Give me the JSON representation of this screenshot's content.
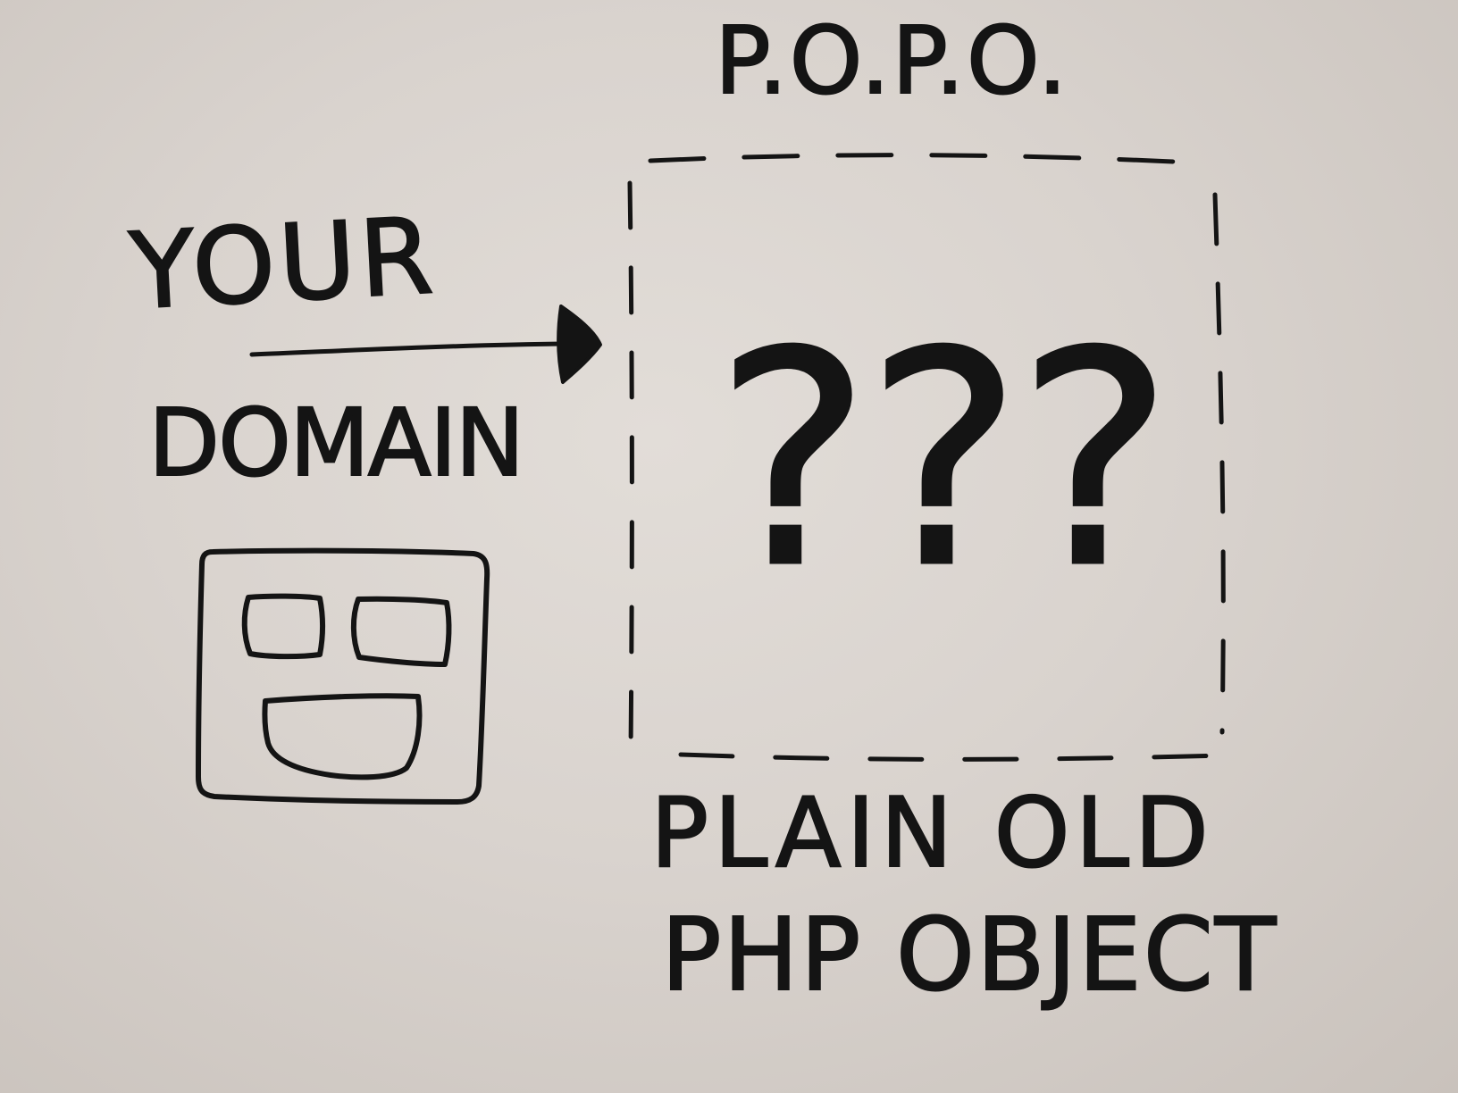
{
  "title": "P.O.P.O.",
  "source_label_line1": "YOUR",
  "source_label_line2": "DOMAIN",
  "unknown_marks": "???",
  "caption_line1": "PLAIN OLD",
  "caption_line2": "PHP OBJECT",
  "colors": {
    "ink": "#141414",
    "board": "#dcd6d1"
  },
  "icons": [
    "smiley-face-box-icon",
    "arrow-right-icon",
    "dashed-box"
  ]
}
